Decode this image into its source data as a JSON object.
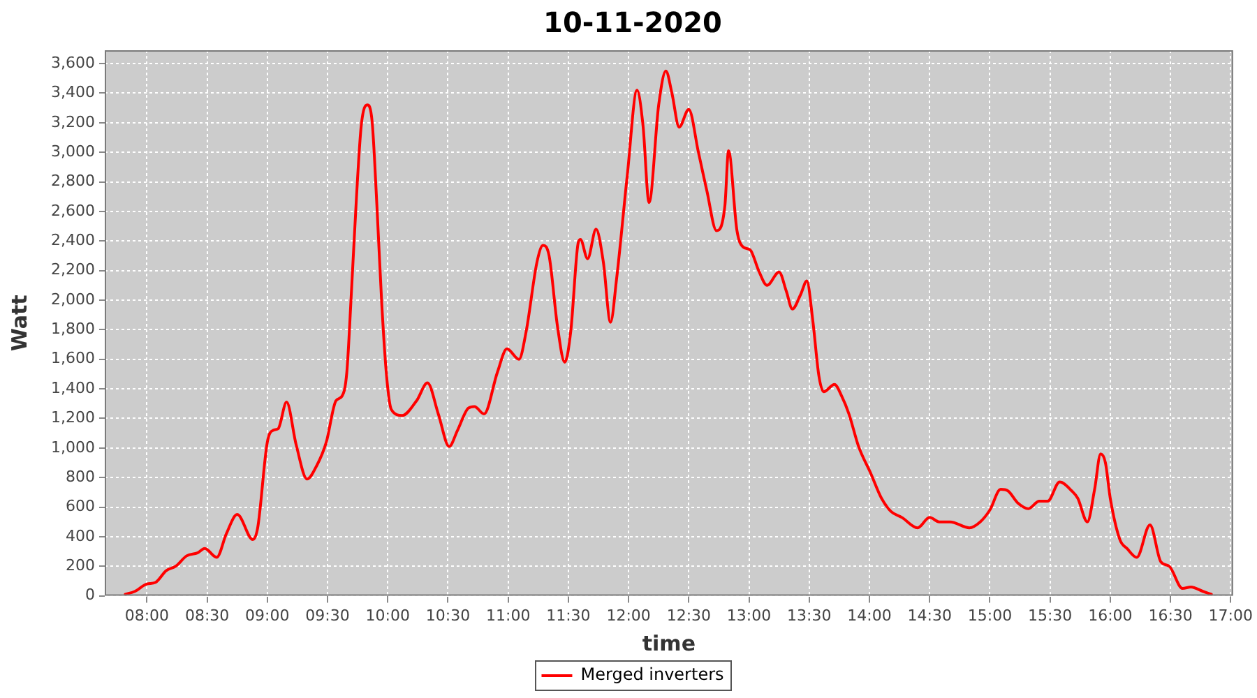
{
  "chart_data": {
    "type": "line",
    "title": "10-11-2020",
    "xlabel": "time",
    "ylabel": "Watt",
    "x": [
      7.82,
      7.9,
      8.0,
      8.07,
      8.16,
      8.24,
      8.33,
      8.42,
      8.48,
      8.58,
      8.66,
      8.75,
      8.88,
      8.92,
      9.0,
      9.05,
      9.09,
      9.16,
      9.24,
      9.33,
      9.41,
      9.49,
      9.57,
      9.62,
      9.66,
      9.7,
      9.74,
      9.78,
      9.83,
      9.87,
      9.91,
      9.95,
      9.99,
      10.03,
      10.12,
      10.24,
      10.33,
      10.42,
      10.51,
      10.58,
      10.67,
      10.72,
      10.8,
      10.91,
      10.99,
      11.09,
      11.15,
      11.24,
      11.29,
      11.34,
      11.41,
      11.47,
      11.52,
      11.58,
      11.6,
      11.66,
      11.73,
      11.79,
      11.85,
      11.9,
      11.99,
      12.07,
      12.12,
      12.17,
      12.25,
      12.31,
      12.36,
      12.42,
      12.5,
      12.58,
      12.65,
      12.73,
      12.8,
      12.83,
      12.9,
      12.95,
      13.01,
      13.08,
      13.15,
      13.25,
      13.31,
      13.36,
      13.43,
      13.48,
      13.53,
      13.58,
      13.62,
      13.71,
      13.77,
      13.83,
      13.91,
      14.01,
      14.1,
      14.18,
      14.27,
      14.4,
      14.5,
      14.58,
      14.67,
      14.83,
      14.92,
      15.0,
      15.09,
      15.15,
      15.23,
      15.32,
      15.41,
      15.48,
      15.58,
      15.68,
      15.73,
      15.81,
      15.87,
      15.92,
      15.96,
      16.0,
      16.08,
      16.14,
      16.22,
      16.33,
      16.42,
      16.49,
      16.6,
      16.67,
      16.77,
      16.84
    ],
    "series": [
      {
        "name": "Merged inverters",
        "color": "#ff0000",
        "values": [
          10,
          30,
          80,
          90,
          170,
          200,
          270,
          290,
          320,
          260,
          420,
          550,
          380,
          460,
          1040,
          1120,
          1130,
          1310,
          1020,
          790,
          880,
          1040,
          1320,
          1350,
          1510,
          2080,
          2690,
          3180,
          3320,
          3210,
          2640,
          1980,
          1490,
          1260,
          1220,
          1320,
          1440,
          1230,
          1010,
          1120,
          1270,
          1280,
          1230,
          1510,
          1670,
          1600,
          1790,
          2260,
          2370,
          2300,
          1820,
          1580,
          1790,
          2380,
          2410,
          2280,
          2480,
          2260,
          1850,
          2140,
          2850,
          3420,
          3180,
          2660,
          3320,
          3550,
          3400,
          3170,
          3290,
          3000,
          2740,
          2470,
          2640,
          3010,
          2470,
          2360,
          2340,
          2200,
          2100,
          2190,
          2060,
          1940,
          2040,
          2130,
          1860,
          1490,
          1380,
          1430,
          1350,
          1230,
          1010,
          830,
          660,
          570,
          530,
          460,
          530,
          500,
          500,
          460,
          500,
          580,
          720,
          710,
          630,
          590,
          640,
          640,
          770,
          710,
          660,
          500,
          720,
          960,
          900,
          660,
          380,
          320,
          260,
          480,
          230,
          200,
          50,
          60,
          30,
          10
        ]
      }
    ],
    "xlim": [
      7.65,
      17.02
    ],
    "xticks": [
      {
        "value": 8,
        "label": "08:00"
      },
      {
        "value": 8.5,
        "label": "08:30"
      },
      {
        "value": 9,
        "label": "09:00"
      },
      {
        "value": 9.5,
        "label": "09:30"
      },
      {
        "value": 10,
        "label": "10:00"
      },
      {
        "value": 10.5,
        "label": "10:30"
      },
      {
        "value": 11,
        "label": "11:00"
      },
      {
        "value": 11.5,
        "label": "11:30"
      },
      {
        "value": 12,
        "label": "12:00"
      },
      {
        "value": 12.5,
        "label": "12:30"
      },
      {
        "value": 13,
        "label": "13:00"
      },
      {
        "value": 13.5,
        "label": "13:30"
      },
      {
        "value": 14,
        "label": "14:00"
      },
      {
        "value": 14.5,
        "label": "14:30"
      },
      {
        "value": 15,
        "label": "15:00"
      },
      {
        "value": 15.5,
        "label": "15:30"
      },
      {
        "value": 16,
        "label": "16:00"
      },
      {
        "value": 16.5,
        "label": "16:30"
      },
      {
        "value": 17,
        "label": "17:00"
      }
    ],
    "ylim": [
      0,
      3690
    ],
    "yticks": [
      0,
      200,
      400,
      600,
      800,
      {
        "value": 1000,
        "label": "1,000"
      },
      {
        "value": 1200,
        "label": "1,200"
      },
      {
        "value": 1400,
        "label": "1,400"
      },
      {
        "value": 1600,
        "label": "1,600"
      },
      {
        "value": 1800,
        "label": "1,800"
      },
      {
        "value": 2000,
        "label": "2,000"
      },
      {
        "value": 2200,
        "label": "2,200"
      },
      {
        "value": 2400,
        "label": "2,400"
      },
      {
        "value": 2600,
        "label": "2,600"
      },
      {
        "value": 2800,
        "label": "2,800"
      },
      {
        "value": 3000,
        "label": "3,000"
      },
      {
        "value": 3200,
        "label": "3,200"
      },
      {
        "value": 3400,
        "label": "3,400"
      },
      {
        "value": 3600,
        "label": "3,600"
      }
    ],
    "grid": true,
    "legend": "bottom"
  }
}
